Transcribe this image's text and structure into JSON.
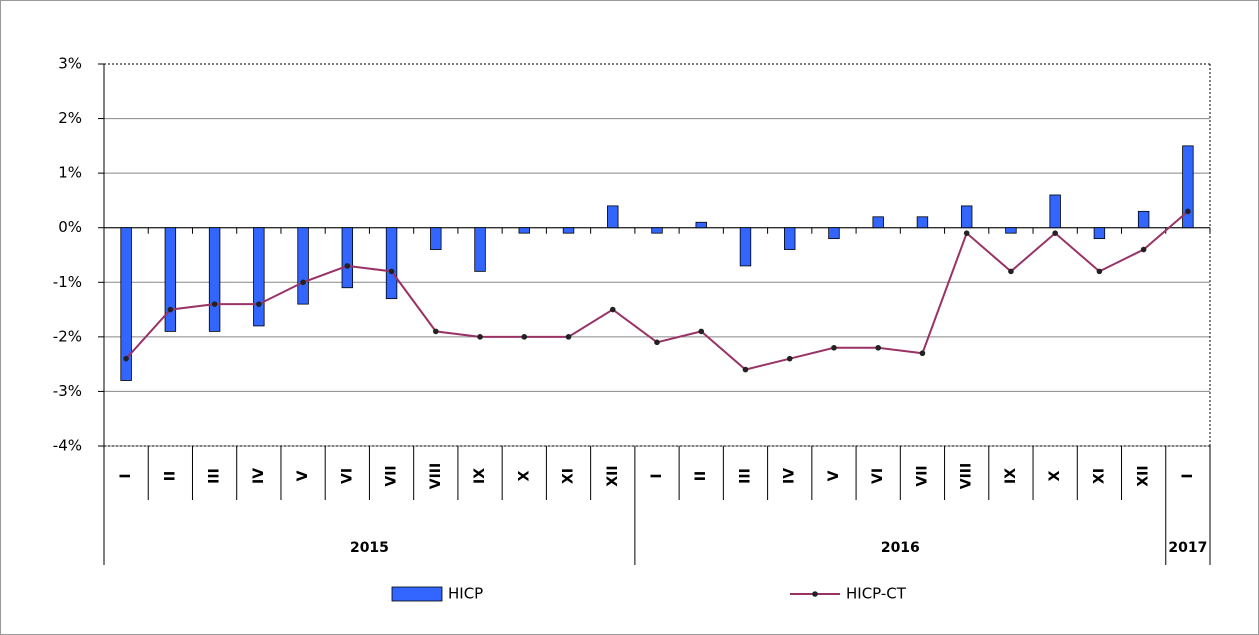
{
  "chart_data": {
    "type": "bar-line",
    "groups": [
      {
        "label": "2015",
        "categories": [
          "I",
          "II",
          "III",
          "IV",
          "V",
          "VI",
          "VII",
          "VIII",
          "IX",
          "X",
          "XI",
          "XII"
        ]
      },
      {
        "label": "2016",
        "categories": [
          "I",
          "II",
          "III",
          "IV",
          "V",
          "VI",
          "VII",
          "VIII",
          "IX",
          "X",
          "XI",
          "XII"
        ]
      },
      {
        "label": "2017",
        "categories": [
          "I"
        ]
      }
    ],
    "series": [
      {
        "name": "HICP",
        "type": "bar",
        "color": "#3366ff",
        "values": [
          -2.8,
          -1.9,
          -1.9,
          -1.8,
          -1.4,
          -1.1,
          -1.3,
          -0.4,
          -0.8,
          -0.1,
          -0.1,
          0.4,
          -0.1,
          0.1,
          -0.7,
          -0.4,
          -0.2,
          0.2,
          0.2,
          0.4,
          -0.1,
          0.6,
          -0.2,
          0.3,
          1.5
        ]
      },
      {
        "name": "HICP-CT",
        "type": "line",
        "color": "#993366",
        "values": [
          -2.4,
          -1.5,
          -1.4,
          -1.4,
          -1.0,
          -0.7,
          -0.8,
          -1.9,
          -2.0,
          -2.0,
          -2.0,
          -1.5,
          -2.1,
          -1.9,
          -2.6,
          -2.4,
          -2.2,
          -2.2,
          -2.3,
          -0.1,
          -0.8,
          -0.1,
          -0.8,
          -0.4,
          0.3
        ]
      }
    ],
    "ylim": [
      -4,
      3
    ],
    "yticks": [
      {
        "value": -4,
        "label": "-4%"
      },
      {
        "value": -3,
        "label": "-3%"
      },
      {
        "value": -2,
        "label": "-2%"
      },
      {
        "value": -1,
        "label": "-1%"
      },
      {
        "value": 0,
        "label": "0%"
      },
      {
        "value": 1,
        "label": "1%"
      },
      {
        "value": 2,
        "label": "2%"
      },
      {
        "value": 3,
        "label": "3%"
      }
    ],
    "grid": true,
    "legend": "bottom"
  }
}
